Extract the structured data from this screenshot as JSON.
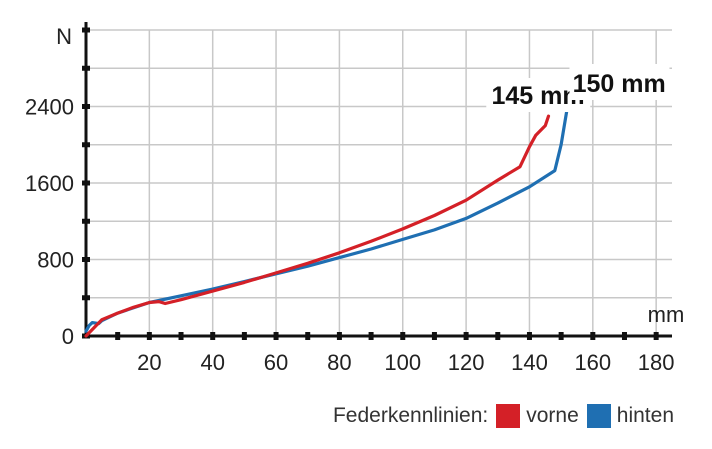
{
  "chart_data": {
    "type": "line",
    "title": "",
    "xlabel": "mm",
    "ylabel": "N",
    "xlim": [
      0,
      185
    ],
    "ylim": [
      0,
      3200
    ],
    "x_ticks": [
      "20",
      "40",
      "60",
      "80",
      "100",
      "120",
      "140",
      "160",
      "180"
    ],
    "y_ticks": [
      "0",
      "800",
      "1600",
      "2400"
    ],
    "grid": true,
    "legend": {
      "title": "Federkennlinien:",
      "position": "bottom-right"
    },
    "series": [
      {
        "name": "vorne",
        "color": "#d42027",
        "x": [
          0,
          5,
          10,
          15,
          20,
          23,
          25,
          30,
          40,
          50,
          60,
          70,
          80,
          90,
          100,
          110,
          120,
          130,
          137,
          140,
          142,
          145,
          146
        ],
        "y": [
          0,
          170,
          240,
          300,
          350,
          360,
          340,
          380,
          470,
          560,
          660,
          760,
          870,
          990,
          1120,
          1260,
          1420,
          1630,
          1770,
          1980,
          2100,
          2200,
          2300
        ],
        "callout": "145 mm"
      },
      {
        "name": "hinten",
        "color": "#1f6fb2",
        "x": [
          0,
          1,
          2,
          4,
          5,
          10,
          20,
          30,
          40,
          50,
          60,
          70,
          80,
          90,
          100,
          110,
          120,
          130,
          140,
          148,
          150,
          151,
          152
        ],
        "y": [
          50,
          110,
          140,
          130,
          160,
          240,
          350,
          420,
          490,
          570,
          650,
          730,
          820,
          910,
          1010,
          1110,
          1230,
          1390,
          1560,
          1730,
          2000,
          2200,
          2400
        ],
        "callout": "150 mm"
      }
    ]
  }
}
